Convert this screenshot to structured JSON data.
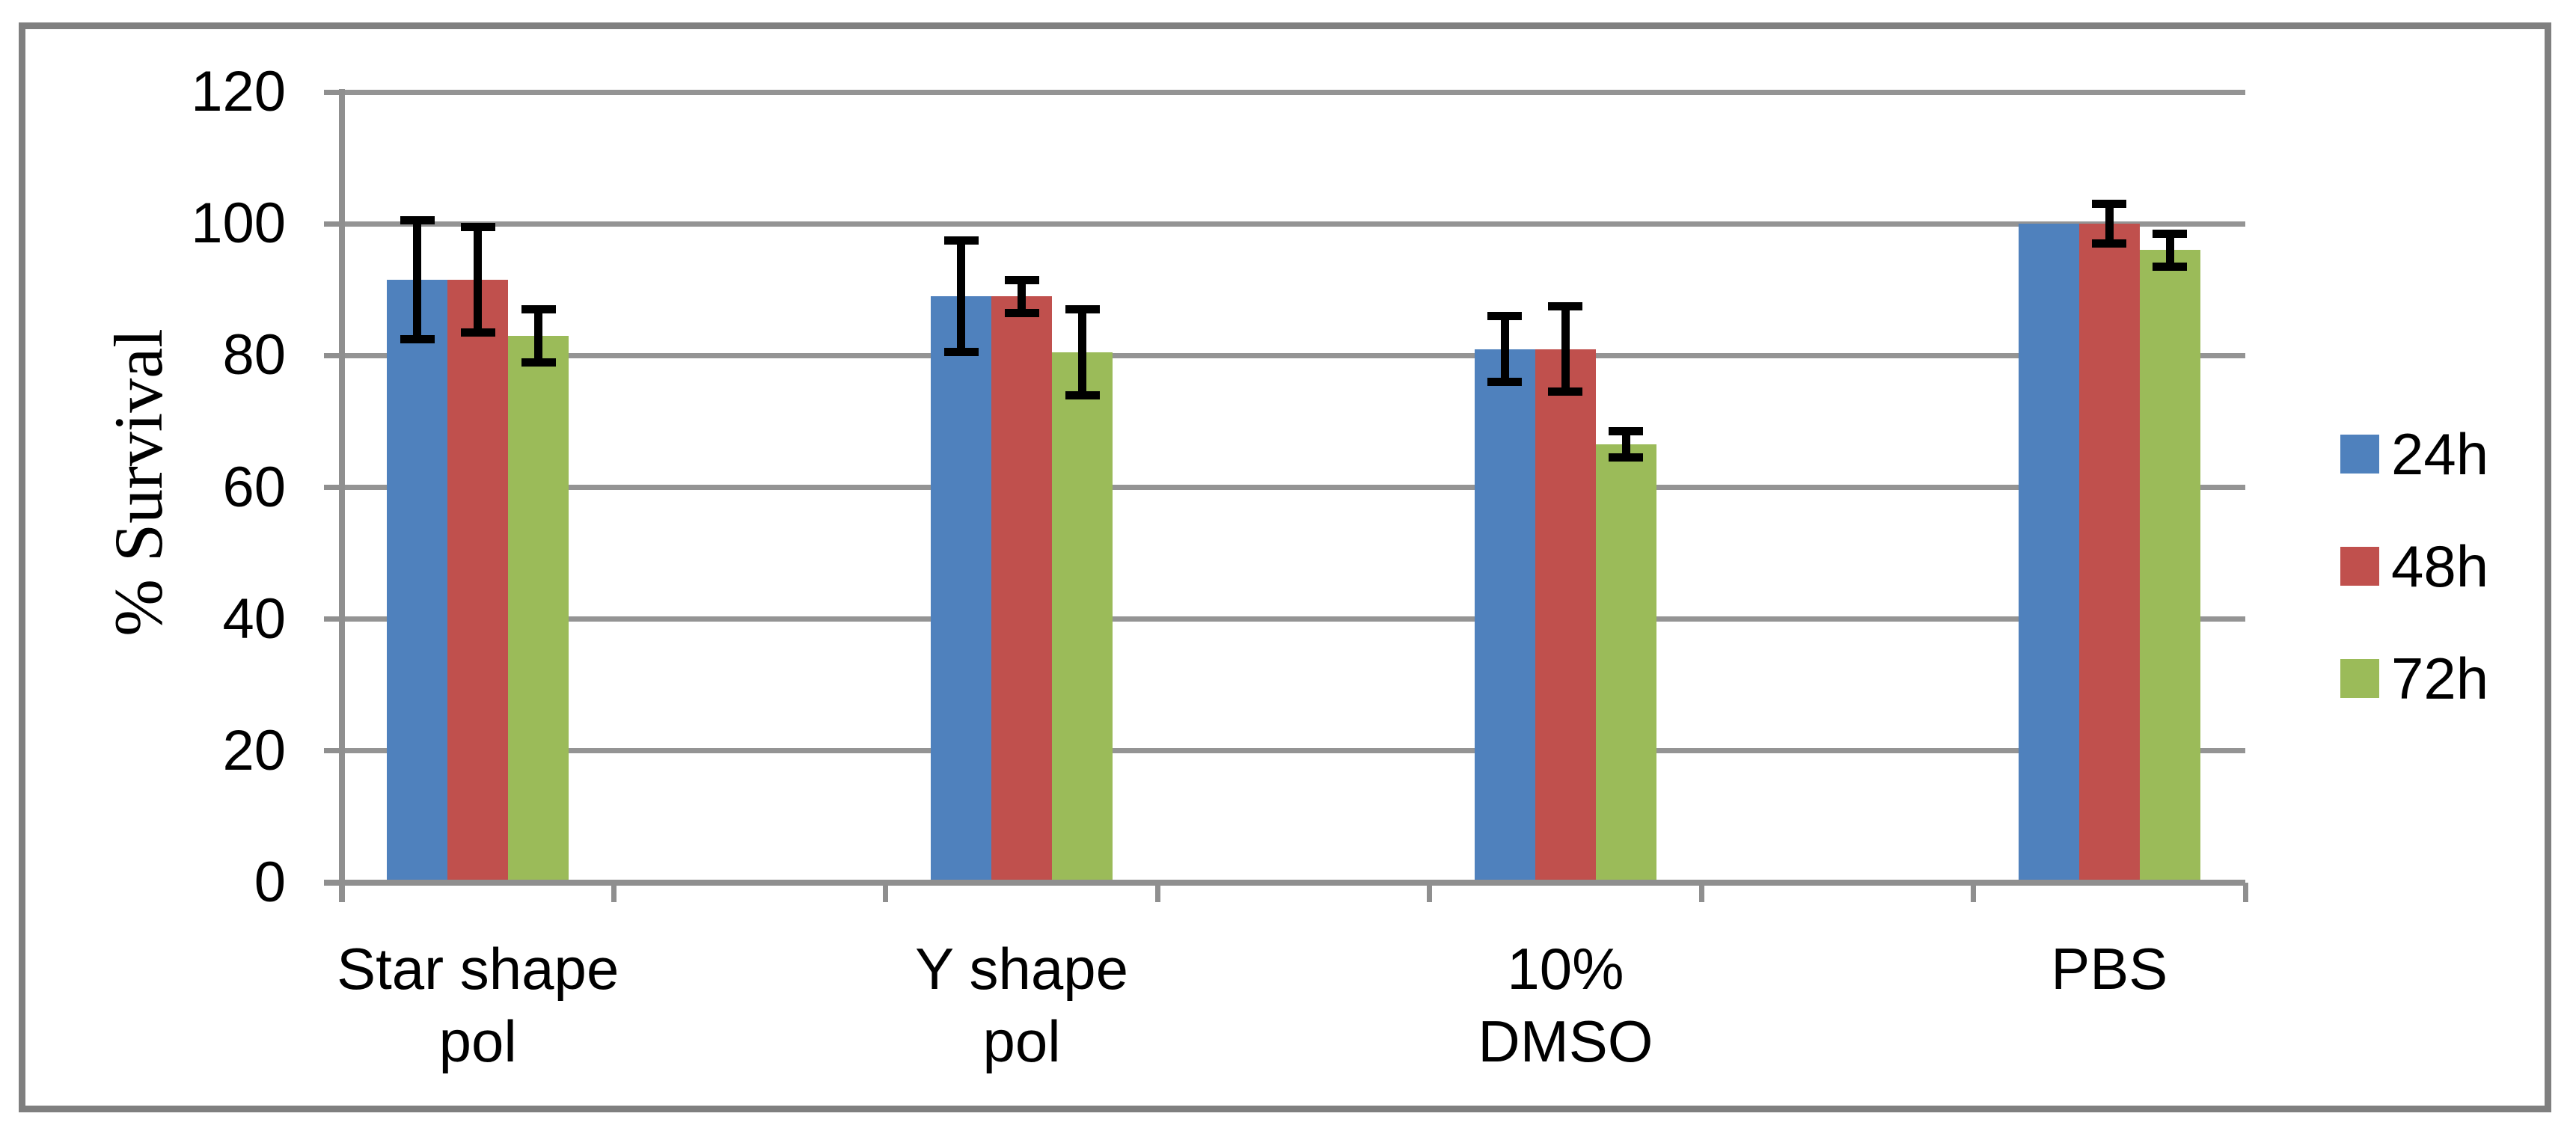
{
  "chart_data": {
    "type": "bar",
    "title": "",
    "ylabel": "% Survival",
    "xlabel": "",
    "categories": [
      "Star shape pol",
      "Y shape pol",
      "10% DMSO",
      "PBS"
    ],
    "category_label_lines": [
      [
        "Star shape",
        "pol"
      ],
      [
        "Y shape",
        "pol"
      ],
      [
        "10%",
        "DMSO"
      ],
      [
        "PBS"
      ]
    ],
    "series": [
      {
        "name": "24h",
        "color": "#4F81BD",
        "values": [
          91.5,
          89,
          81,
          100
        ],
        "errors": [
          9,
          8.5,
          5,
          0
        ]
      },
      {
        "name": "48h",
        "color": "#C0504D",
        "values": [
          91.5,
          89,
          81,
          100
        ],
        "errors": [
          8,
          2.5,
          6.5,
          3
        ]
      },
      {
        "name": "72h",
        "color": "#9BBB59",
        "values": [
          83,
          80.5,
          66.5,
          96
        ],
        "errors": [
          4,
          6.5,
          2,
          2.5
        ]
      }
    ],
    "ylim": [
      0,
      120
    ],
    "ytick_step": 20,
    "ytick_labels": [
      "0",
      "20",
      "40",
      "60",
      "80",
      "100",
      "120"
    ],
    "grid": "horizontal",
    "legend_position": "right",
    "error_bar_color": "#000000"
  },
  "style_colors": {
    "gridline": "#949494",
    "axis": "#8f8f8f",
    "frame": "#7f7f7f",
    "background": "#ffffff",
    "text": "#000000"
  }
}
